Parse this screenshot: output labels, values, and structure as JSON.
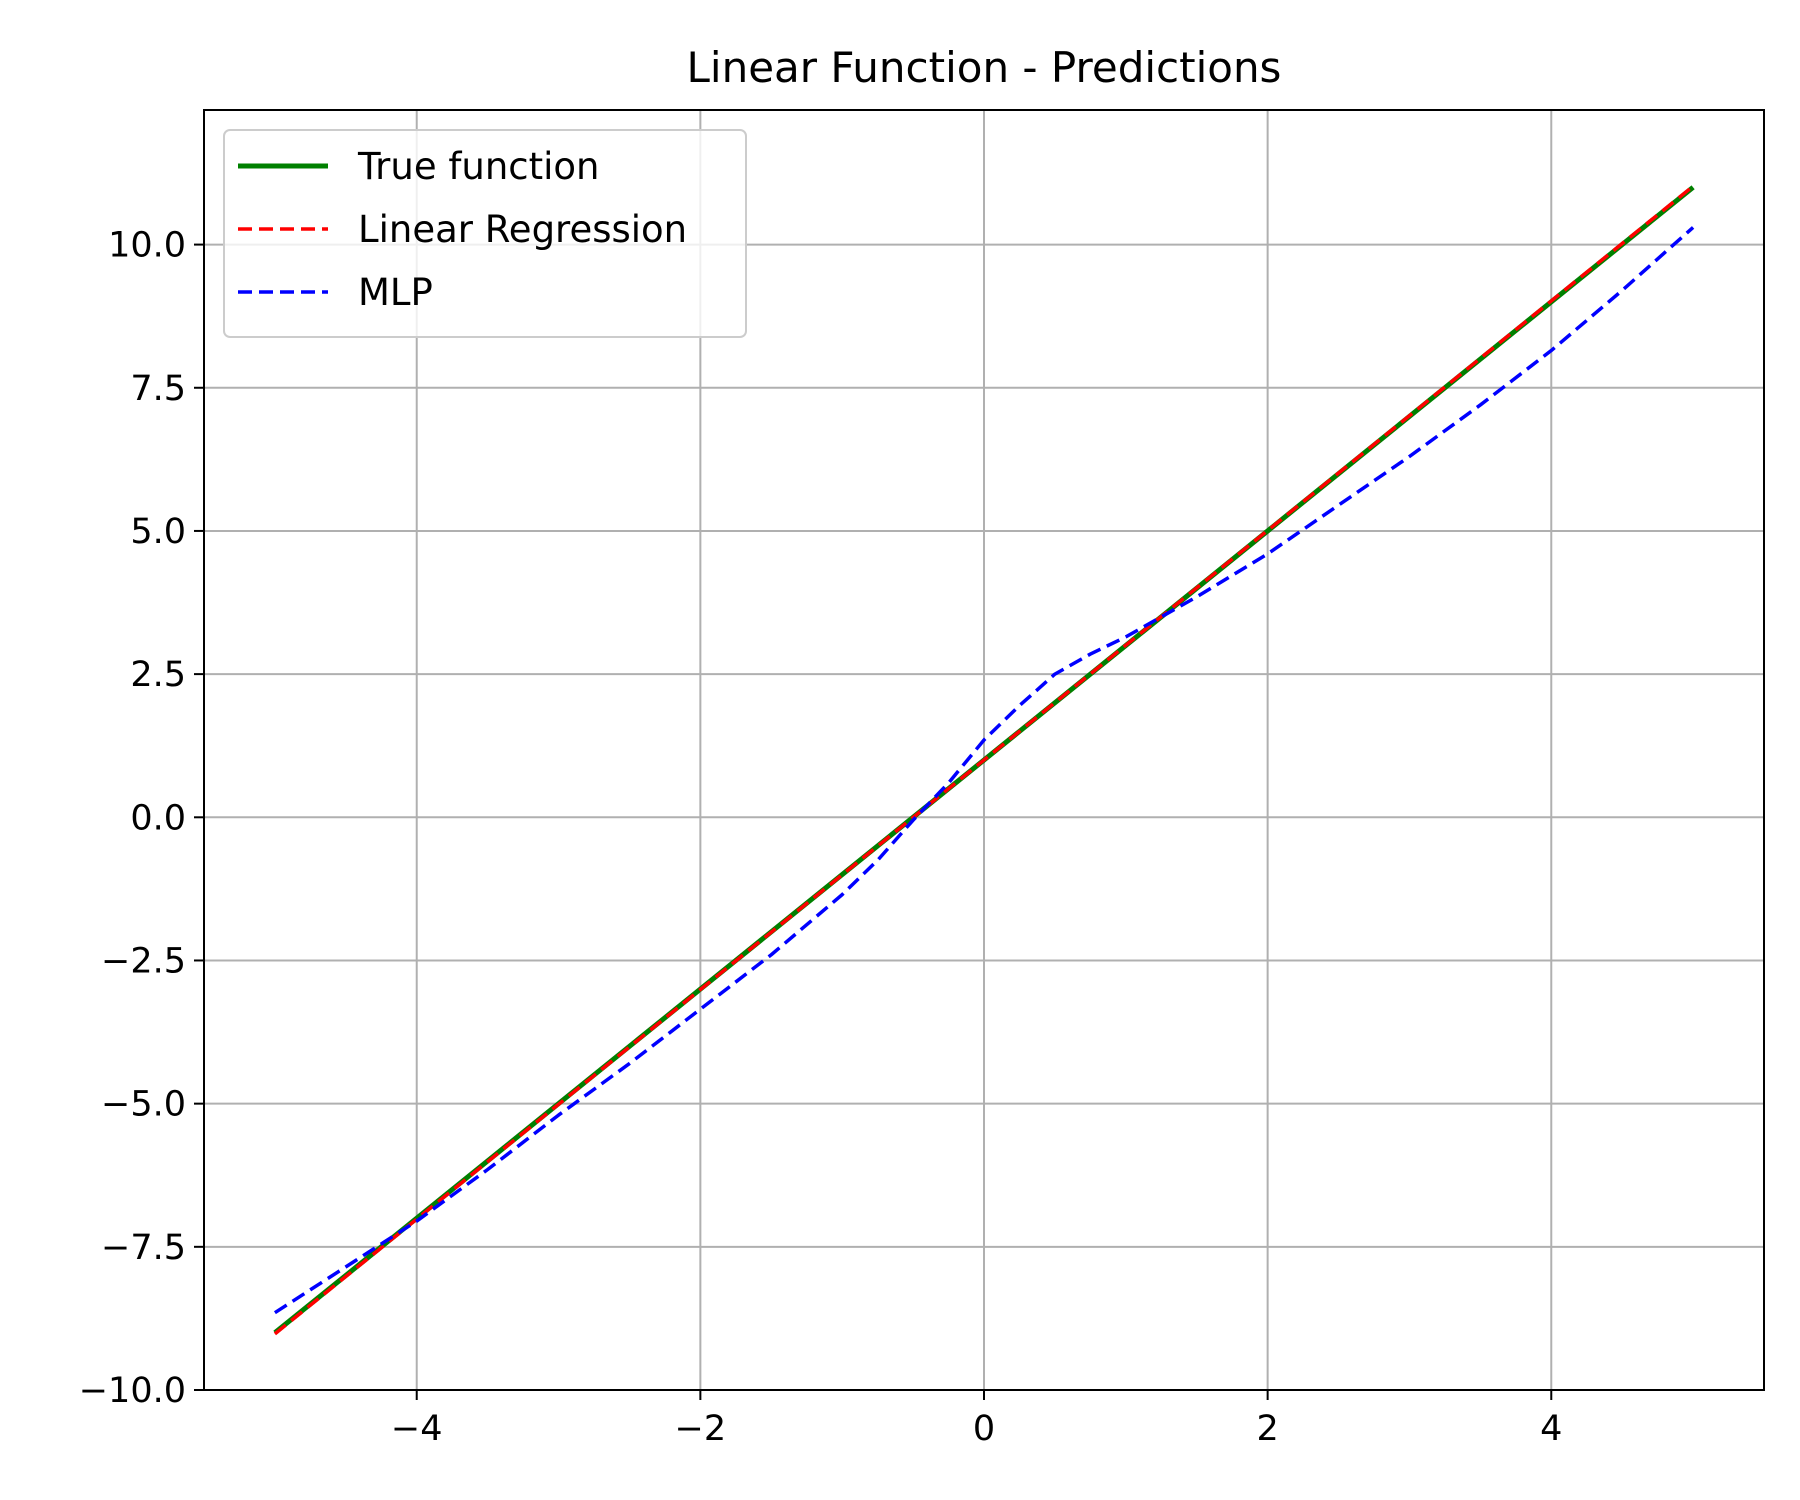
{
  "chart_data": {
    "type": "line",
    "title": "Linear Function - Predictions",
    "xlabel": "",
    "ylabel": "",
    "xlim": [
      -5.5,
      5.5
    ],
    "ylim": [
      -10.0,
      12.35
    ],
    "xticks": [
      -4,
      -2,
      0,
      2,
      4
    ],
    "xtick_labels": [
      "−4",
      "−2",
      "0",
      "2",
      "4"
    ],
    "yticks": [
      -10.0,
      -7.5,
      -5.0,
      -2.5,
      0.0,
      2.5,
      5.0,
      7.5,
      10.0
    ],
    "ytick_labels": [
      "−10.0",
      "−7.5",
      "−5.0",
      "−2.5",
      "0.0",
      "2.5",
      "5.0",
      "7.5",
      "10.0"
    ],
    "grid": true,
    "legend_position": "upper-left",
    "series": [
      {
        "name": "True function",
        "color": "#008000",
        "style": "solid",
        "x": [
          -5,
          5
        ],
        "y": [
          -9.0,
          11.0
        ]
      },
      {
        "name": "Linear Regression",
        "color": "#ff0000",
        "style": "dashed",
        "x": [
          -5,
          5
        ],
        "y": [
          -9.02,
          11.02
        ]
      },
      {
        "name": "MLP",
        "color": "#0000ff",
        "style": "dashed",
        "x": [
          -5.0,
          -4.5,
          -4.0,
          -3.5,
          -3.0,
          -2.5,
          -2.0,
          -1.5,
          -1.0,
          -0.75,
          -0.5,
          -0.25,
          0.0,
          0.25,
          0.5,
          0.75,
          1.0,
          1.5,
          2.0,
          2.5,
          3.0,
          3.5,
          4.0,
          4.5,
          5.0
        ],
        "y": [
          -8.65,
          -7.85,
          -7.05,
          -6.15,
          -5.2,
          -4.3,
          -3.35,
          -2.4,
          -1.35,
          -0.75,
          -0.05,
          0.6,
          1.35,
          1.95,
          2.5,
          2.85,
          3.15,
          3.85,
          4.6,
          5.45,
          6.3,
          7.2,
          8.15,
          9.2,
          10.3
        ]
      }
    ]
  }
}
